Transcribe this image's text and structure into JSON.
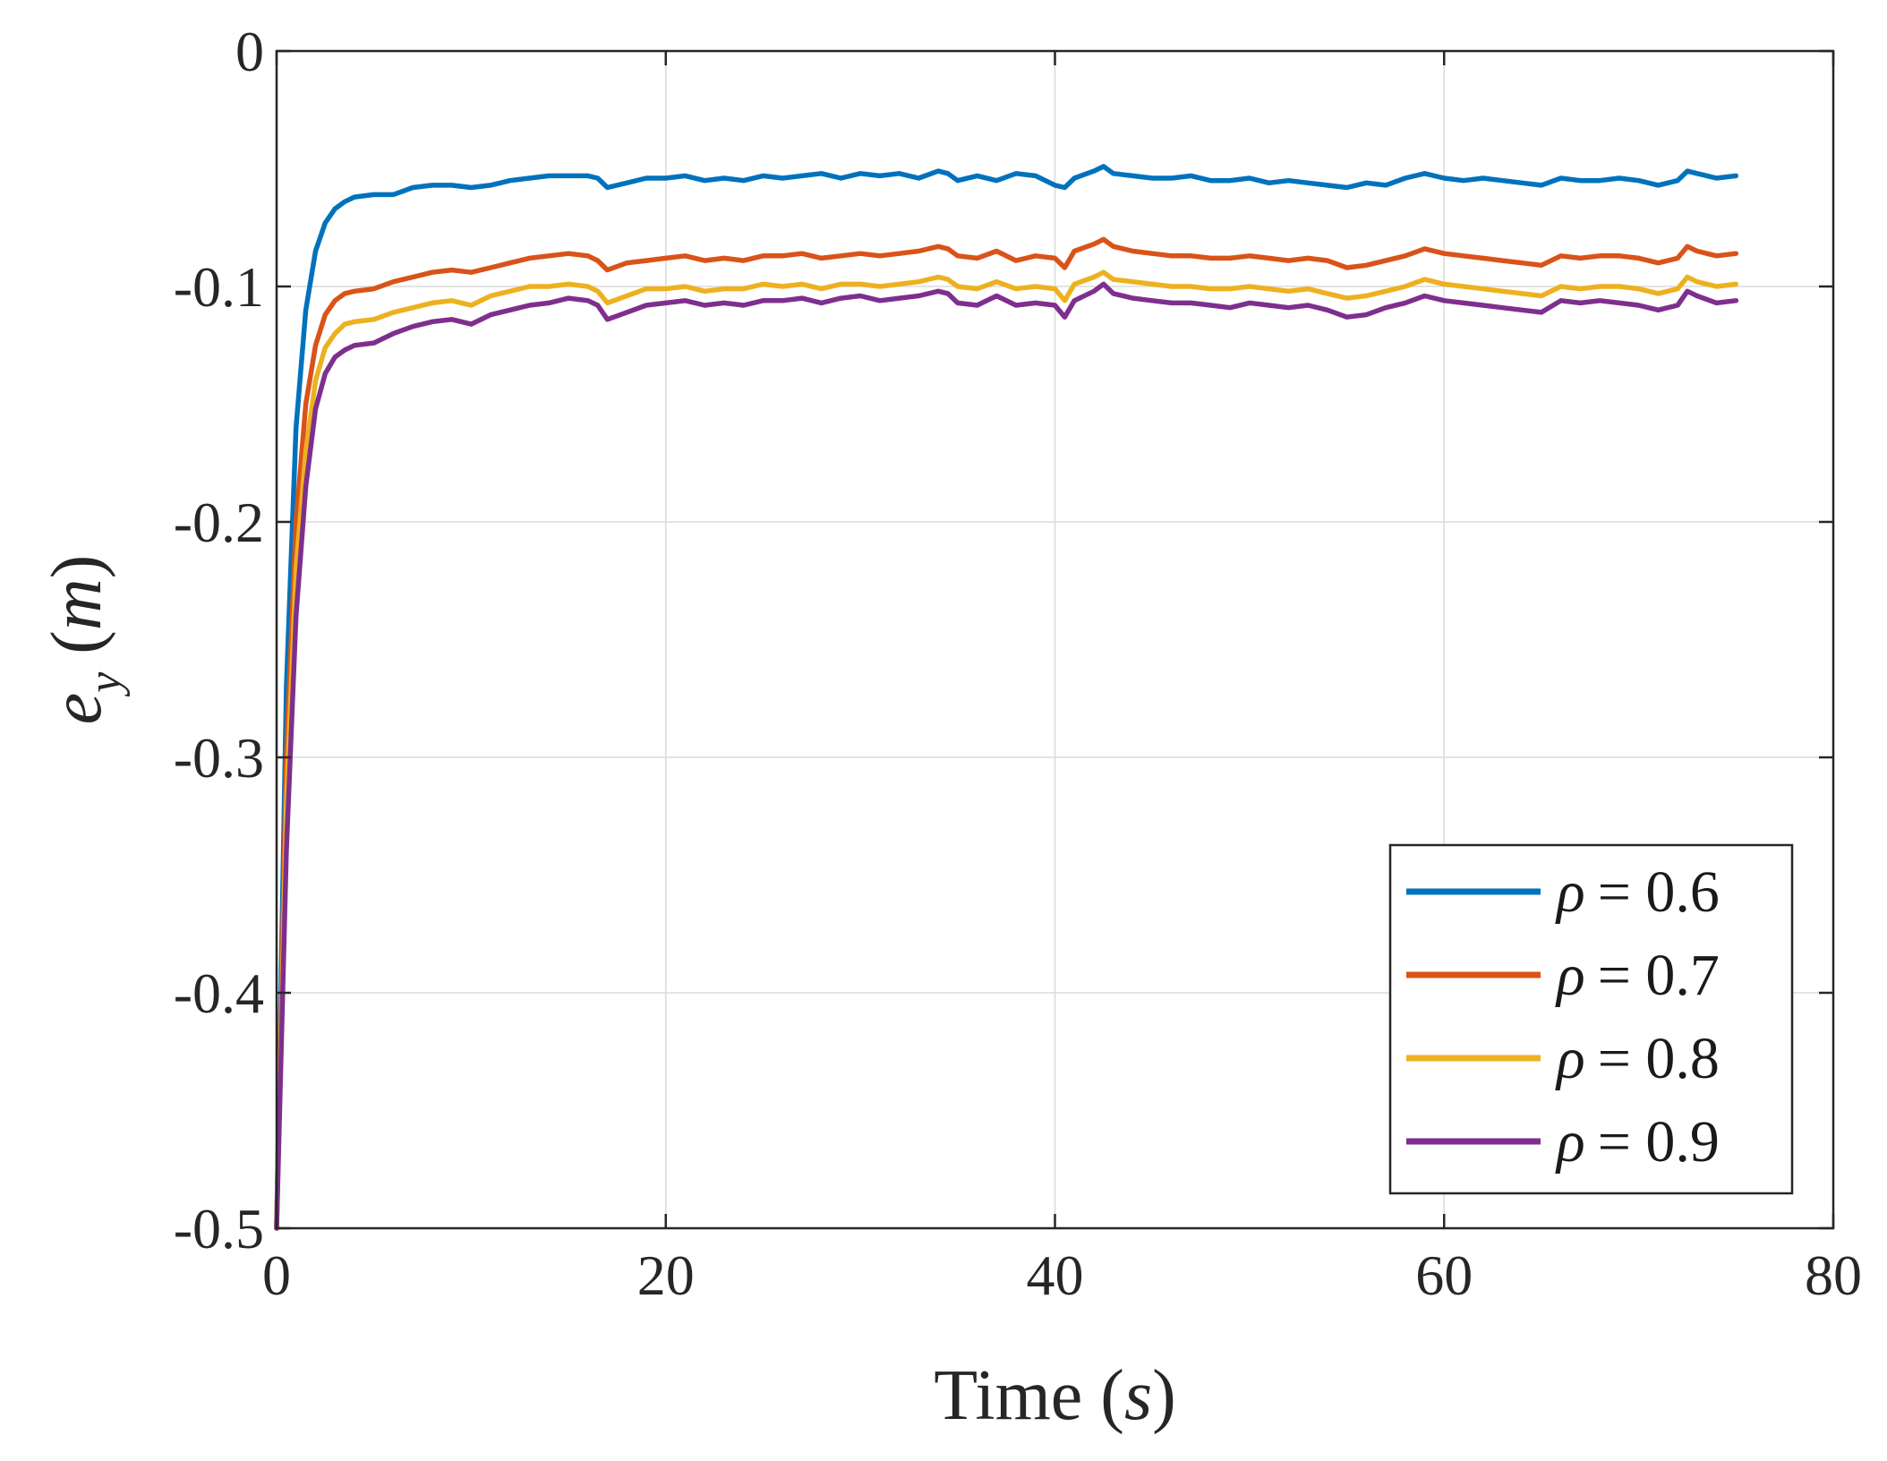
{
  "chart_data": {
    "type": "line",
    "title": "",
    "xlabel": {
      "text": "Time",
      "unit": "s"
    },
    "ylabel": {
      "symbol": "e",
      "subscript": "y",
      "unit": "m"
    },
    "xlim": [
      0,
      80
    ],
    "ylim": [
      -0.5,
      0
    ],
    "xticks": [
      0,
      20,
      40,
      60,
      80
    ],
    "xtick_labels": [
      "0",
      "20",
      "40",
      "60",
      "80"
    ],
    "yticks": [
      0,
      -0.1,
      -0.2,
      -0.3,
      -0.4,
      -0.5
    ],
    "ytick_labels": [
      "0",
      "-0.1",
      "-0.2",
      "-0.3",
      "-0.4",
      "-0.5"
    ],
    "grid": true,
    "legend_position": "bottom-right",
    "x": [
      0,
      0.5,
      1,
      1.5,
      2,
      2.5,
      3,
      3.5,
      4,
      5,
      6,
      7,
      8,
      9,
      10,
      11,
      12,
      13,
      14,
      15,
      16,
      16.5,
      17,
      18,
      19,
      20,
      21,
      22,
      23,
      24,
      25,
      26,
      27,
      28,
      29,
      30,
      31,
      32,
      33,
      34,
      34.5,
      35,
      36,
      37,
      38,
      39,
      40,
      40.5,
      41,
      42,
      42.5,
      43,
      44,
      45,
      46,
      47,
      48,
      49,
      50,
      51,
      52,
      53,
      54,
      55,
      56,
      57,
      58,
      59,
      60,
      61,
      62,
      63,
      64,
      65,
      66,
      67,
      68,
      69,
      70,
      71,
      72,
      72.5,
      73,
      74,
      75
    ],
    "series": [
      {
        "name": "ρ = 0.6",
        "label_symbol": "ρ",
        "label_value": "= 0.6",
        "color": "#0072BD",
        "values": [
          -0.5,
          -0.27,
          -0.16,
          -0.11,
          -0.085,
          -0.073,
          -0.067,
          -0.064,
          -0.062,
          -0.061,
          -0.061,
          -0.058,
          -0.057,
          -0.057,
          -0.058,
          -0.057,
          -0.055,
          -0.054,
          -0.053,
          -0.053,
          -0.053,
          -0.054,
          -0.058,
          -0.056,
          -0.054,
          -0.054,
          -0.053,
          -0.055,
          -0.054,
          -0.055,
          -0.053,
          -0.054,
          -0.053,
          -0.052,
          -0.054,
          -0.052,
          -0.053,
          -0.052,
          -0.054,
          -0.051,
          -0.052,
          -0.055,
          -0.053,
          -0.055,
          -0.052,
          -0.053,
          -0.057,
          -0.058,
          -0.054,
          -0.051,
          -0.049,
          -0.052,
          -0.053,
          -0.054,
          -0.054,
          -0.053,
          -0.055,
          -0.055,
          -0.054,
          -0.056,
          -0.055,
          -0.056,
          -0.057,
          -0.058,
          -0.056,
          -0.057,
          -0.054,
          -0.052,
          -0.054,
          -0.055,
          -0.054,
          -0.055,
          -0.056,
          -0.057,
          -0.054,
          -0.055,
          -0.055,
          -0.054,
          -0.055,
          -0.057,
          -0.055,
          -0.051,
          -0.052,
          -0.054,
          -0.053
        ]
      },
      {
        "name": "ρ = 0.7",
        "label_symbol": "ρ",
        "label_value": "= 0.7",
        "color": "#D95319",
        "values": [
          -0.5,
          -0.3,
          -0.2,
          -0.15,
          -0.125,
          -0.112,
          -0.106,
          -0.103,
          -0.102,
          -0.101,
          -0.098,
          -0.096,
          -0.094,
          -0.093,
          -0.094,
          -0.092,
          -0.09,
          -0.088,
          -0.087,
          -0.086,
          -0.087,
          -0.089,
          -0.093,
          -0.09,
          -0.089,
          -0.088,
          -0.087,
          -0.089,
          -0.088,
          -0.089,
          -0.087,
          -0.087,
          -0.086,
          -0.088,
          -0.087,
          -0.086,
          -0.087,
          -0.086,
          -0.085,
          -0.083,
          -0.084,
          -0.087,
          -0.088,
          -0.085,
          -0.089,
          -0.087,
          -0.088,
          -0.092,
          -0.085,
          -0.082,
          -0.08,
          -0.083,
          -0.085,
          -0.086,
          -0.087,
          -0.087,
          -0.088,
          -0.088,
          -0.087,
          -0.088,
          -0.089,
          -0.088,
          -0.089,
          -0.092,
          -0.091,
          -0.089,
          -0.087,
          -0.084,
          -0.086,
          -0.087,
          -0.088,
          -0.089,
          -0.09,
          -0.091,
          -0.087,
          -0.088,
          -0.087,
          -0.087,
          -0.088,
          -0.09,
          -0.088,
          -0.083,
          -0.085,
          -0.087,
          -0.086
        ]
      },
      {
        "name": "ρ = 0.8",
        "label_symbol": "ρ",
        "label_value": "= 0.8",
        "color": "#EDB120",
        "values": [
          -0.5,
          -0.32,
          -0.22,
          -0.17,
          -0.14,
          -0.126,
          -0.12,
          -0.116,
          -0.115,
          -0.114,
          -0.111,
          -0.109,
          -0.107,
          -0.106,
          -0.108,
          -0.104,
          -0.102,
          -0.1,
          -0.1,
          -0.099,
          -0.1,
          -0.102,
          -0.107,
          -0.104,
          -0.101,
          -0.101,
          -0.1,
          -0.102,
          -0.101,
          -0.101,
          -0.099,
          -0.1,
          -0.099,
          -0.101,
          -0.099,
          -0.099,
          -0.1,
          -0.099,
          -0.098,
          -0.096,
          -0.097,
          -0.1,
          -0.101,
          -0.098,
          -0.101,
          -0.1,
          -0.101,
          -0.106,
          -0.099,
          -0.096,
          -0.094,
          -0.097,
          -0.098,
          -0.099,
          -0.1,
          -0.1,
          -0.101,
          -0.101,
          -0.1,
          -0.101,
          -0.102,
          -0.101,
          -0.103,
          -0.105,
          -0.104,
          -0.102,
          -0.1,
          -0.097,
          -0.099,
          -0.1,
          -0.101,
          -0.102,
          -0.103,
          -0.104,
          -0.1,
          -0.101,
          -0.1,
          -0.1,
          -0.101,
          -0.103,
          -0.101,
          -0.096,
          -0.098,
          -0.1,
          -0.099
        ]
      },
      {
        "name": "ρ = 0.9",
        "label_symbol": "ρ",
        "label_value": "= 0.9",
        "color": "#7E2F8E",
        "values": [
          -0.5,
          -0.34,
          -0.24,
          -0.185,
          -0.152,
          -0.137,
          -0.13,
          -0.127,
          -0.125,
          -0.124,
          -0.12,
          -0.117,
          -0.115,
          -0.114,
          -0.116,
          -0.112,
          -0.11,
          -0.108,
          -0.107,
          -0.105,
          -0.106,
          -0.108,
          -0.114,
          -0.111,
          -0.108,
          -0.107,
          -0.106,
          -0.108,
          -0.107,
          -0.108,
          -0.106,
          -0.106,
          -0.105,
          -0.107,
          -0.105,
          -0.104,
          -0.106,
          -0.105,
          -0.104,
          -0.102,
          -0.103,
          -0.107,
          -0.108,
          -0.104,
          -0.108,
          -0.107,
          -0.108,
          -0.113,
          -0.106,
          -0.102,
          -0.099,
          -0.103,
          -0.105,
          -0.106,
          -0.107,
          -0.107,
          -0.108,
          -0.109,
          -0.107,
          -0.108,
          -0.109,
          -0.108,
          -0.11,
          -0.113,
          -0.112,
          -0.109,
          -0.107,
          -0.104,
          -0.106,
          -0.107,
          -0.108,
          -0.109,
          -0.11,
          -0.111,
          -0.106,
          -0.107,
          -0.106,
          -0.107,
          -0.108,
          -0.11,
          -0.108,
          -0.102,
          -0.104,
          -0.107,
          -0.106
        ]
      }
    ]
  }
}
